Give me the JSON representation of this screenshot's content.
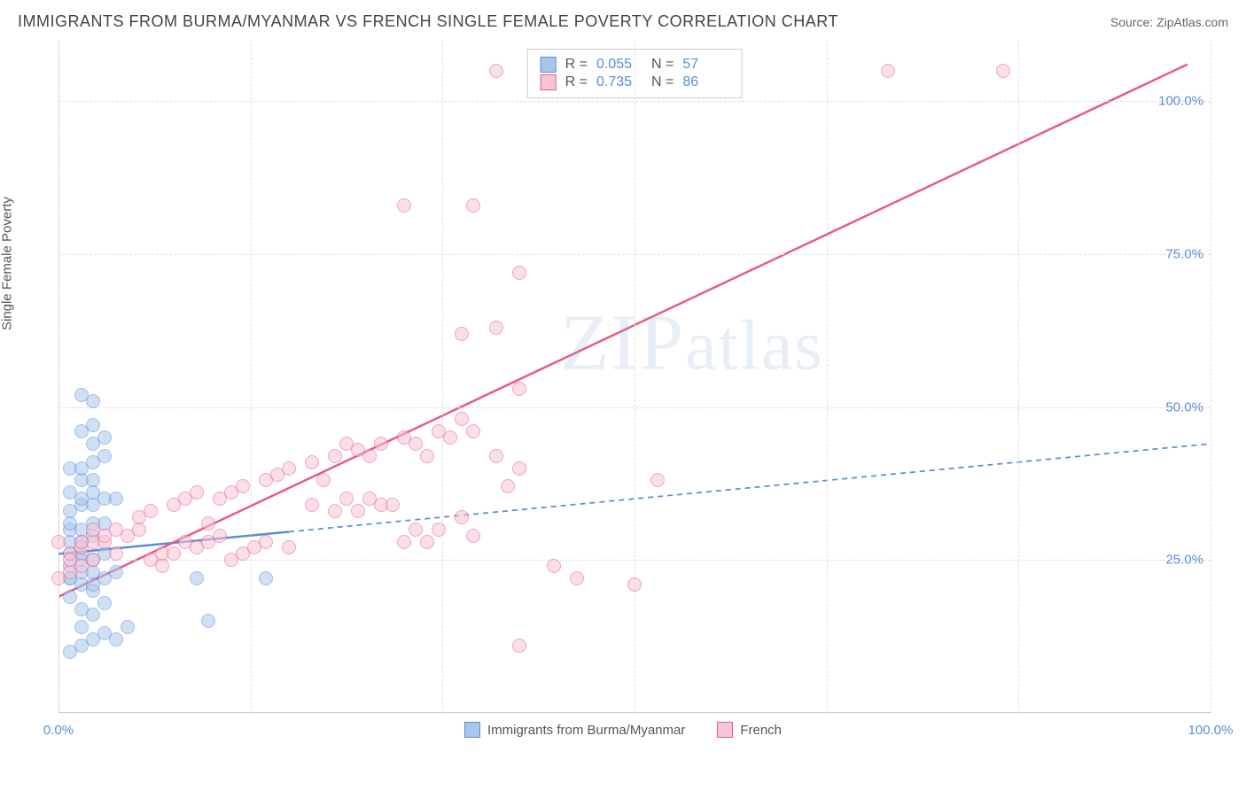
{
  "title": "IMMIGRANTS FROM BURMA/MYANMAR VS FRENCH SINGLE FEMALE POVERTY CORRELATION CHART",
  "source_label": "Source:",
  "source_value": "ZipAtlas.com",
  "y_axis_label": "Single Female Poverty",
  "watermark": "ZIPatlas",
  "chart": {
    "type": "scatter",
    "xlim": [
      0,
      100
    ],
    "ylim": [
      0,
      110
    ],
    "x_ticks": [
      0,
      100
    ],
    "x_tick_labels": [
      "0.0%",
      "100.0%"
    ],
    "y_ticks": [
      25,
      50,
      75,
      100
    ],
    "y_tick_labels": [
      "25.0%",
      "50.0%",
      "75.0%",
      "100.0%"
    ],
    "x_gridlines": [
      0,
      16.7,
      33.3,
      50,
      66.7,
      83.3,
      100
    ],
    "y_gridlines": [
      25,
      50,
      75,
      100
    ],
    "background_color": "#ffffff",
    "grid_color": "#dddddd",
    "axis_color": "#cccccc",
    "tick_color": "#5b8dd6",
    "tick_fontsize": 15,
    "marker_radius": 8,
    "marker_opacity": 0.55,
    "series": [
      {
        "name": "Immigrants from Burma/Myanmar",
        "color_fill": "#a8c6ec",
        "color_stroke": "#5b8dd6",
        "r": 0.055,
        "n": 57,
        "trend": {
          "x1": 0,
          "y1": 26,
          "x2": 20,
          "y2": 29,
          "ext_x2": 100,
          "ext_y2": 44,
          "solid_until": 20,
          "dash": "6,5",
          "width": 2.5
        },
        "points": [
          [
            1,
            10
          ],
          [
            2,
            11
          ],
          [
            3,
            12
          ],
          [
            4,
            13
          ],
          [
            5,
            12
          ],
          [
            6,
            14
          ],
          [
            2,
            14
          ],
          [
            1,
            22
          ],
          [
            2,
            23
          ],
          [
            3,
            23
          ],
          [
            1,
            24
          ],
          [
            2,
            25
          ],
          [
            3,
            25
          ],
          [
            4,
            26
          ],
          [
            1,
            26
          ],
          [
            2,
            26
          ],
          [
            1,
            28
          ],
          [
            2,
            28
          ],
          [
            3,
            29
          ],
          [
            1,
            30
          ],
          [
            2,
            30
          ],
          [
            4,
            31
          ],
          [
            3,
            31
          ],
          [
            1,
            31
          ],
          [
            1,
            33
          ],
          [
            2,
            34
          ],
          [
            3,
            34
          ],
          [
            4,
            35
          ],
          [
            5,
            35
          ],
          [
            2,
            35
          ],
          [
            3,
            36
          ],
          [
            1,
            36
          ],
          [
            2,
            38
          ],
          [
            3,
            38
          ],
          [
            1,
            40
          ],
          [
            2,
            40
          ],
          [
            3,
            41
          ],
          [
            4,
            42
          ],
          [
            3,
            44
          ],
          [
            4,
            45
          ],
          [
            2,
            46
          ],
          [
            3,
            47
          ],
          [
            3,
            51
          ],
          [
            2,
            52
          ],
          [
            1,
            22
          ],
          [
            2,
            21
          ],
          [
            3,
            20
          ],
          [
            4,
            22
          ],
          [
            5,
            23
          ],
          [
            3,
            21
          ],
          [
            13,
            15
          ],
          [
            12,
            22
          ],
          [
            18,
            22
          ],
          [
            4,
            18
          ],
          [
            2,
            17
          ],
          [
            3,
            16
          ],
          [
            1,
            19
          ]
        ]
      },
      {
        "name": "French",
        "color_fill": "#f7c5d3",
        "color_stroke": "#e85a8a",
        "r": 0.735,
        "n": 86,
        "trend": {
          "x1": 0,
          "y1": 19,
          "x2": 98,
          "y2": 106,
          "dash": "none",
          "width": 2.5
        },
        "points": [
          [
            0,
            22
          ],
          [
            1,
            23
          ],
          [
            2,
            24
          ],
          [
            3,
            25
          ],
          [
            1,
            26
          ],
          [
            2,
            27
          ],
          [
            3,
            28
          ],
          [
            4,
            28
          ],
          [
            0,
            28
          ],
          [
            1,
            25
          ],
          [
            2,
            28
          ],
          [
            3,
            30
          ],
          [
            4,
            29
          ],
          [
            5,
            30
          ],
          [
            6,
            29
          ],
          [
            7,
            30
          ],
          [
            5,
            26
          ],
          [
            8,
            25
          ],
          [
            9,
            26
          ],
          [
            10,
            26
          ],
          [
            11,
            28
          ],
          [
            12,
            27
          ],
          [
            13,
            28
          ],
          [
            14,
            29
          ],
          [
            9,
            24
          ],
          [
            7,
            32
          ],
          [
            8,
            33
          ],
          [
            10,
            34
          ],
          [
            11,
            35
          ],
          [
            12,
            36
          ],
          [
            14,
            35
          ],
          [
            15,
            36
          ],
          [
            13,
            31
          ],
          [
            15,
            25
          ],
          [
            16,
            26
          ],
          [
            17,
            27
          ],
          [
            18,
            28
          ],
          [
            20,
            27
          ],
          [
            22,
            34
          ],
          [
            16,
            37
          ],
          [
            18,
            38
          ],
          [
            19,
            39
          ],
          [
            20,
            40
          ],
          [
            22,
            41
          ],
          [
            24,
            42
          ],
          [
            23,
            38
          ],
          [
            24,
            33
          ],
          [
            25,
            35
          ],
          [
            26,
            33
          ],
          [
            27,
            35
          ],
          [
            28,
            34
          ],
          [
            25,
            44
          ],
          [
            26,
            43
          ],
          [
            27,
            42
          ],
          [
            28,
            44
          ],
          [
            30,
            45
          ],
          [
            31,
            44
          ],
          [
            33,
            46
          ],
          [
            29,
            34
          ],
          [
            30,
            28
          ],
          [
            31,
            30
          ],
          [
            32,
            28
          ],
          [
            33,
            30
          ],
          [
            35,
            32
          ],
          [
            36,
            29
          ],
          [
            32,
            42
          ],
          [
            34,
            45
          ],
          [
            35,
            48
          ],
          [
            36,
            46
          ],
          [
            38,
            42
          ],
          [
            40,
            40
          ],
          [
            39,
            37
          ],
          [
            35,
            62
          ],
          [
            38,
            63
          ],
          [
            40,
            53
          ],
          [
            40,
            72
          ],
          [
            30,
            83
          ],
          [
            36,
            83
          ],
          [
            38,
            105
          ],
          [
            43,
            24
          ],
          [
            45,
            22
          ],
          [
            50,
            21
          ],
          [
            52,
            38
          ],
          [
            72,
            105
          ],
          [
            82,
            105
          ],
          [
            40,
            11
          ]
        ]
      }
    ],
    "stats_legend": {
      "r_label": "R =",
      "n_label": "N ="
    },
    "bottom_legend": {
      "items": [
        "Immigrants from Burma/Myanmar",
        "French"
      ]
    }
  }
}
